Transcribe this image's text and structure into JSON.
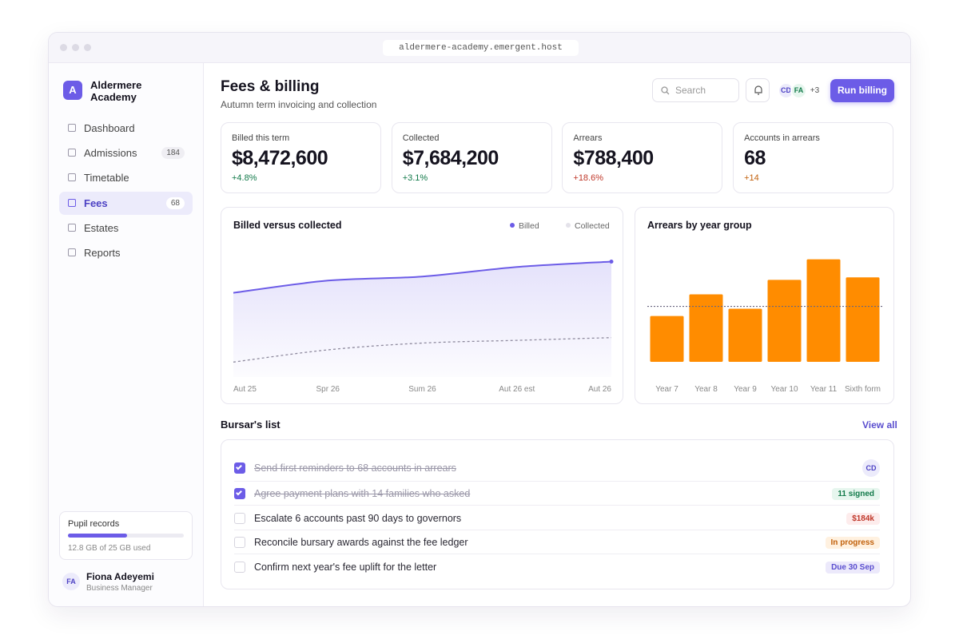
{
  "browser": {
    "url": "aldermere-academy.emergent.host"
  },
  "sidebar": {
    "logo": "A",
    "school": "Aldermere Academy",
    "nav": [
      {
        "label": "Dashboard"
      },
      {
        "label": "Admissions",
        "badge": 184
      },
      {
        "label": "Timetable"
      },
      {
        "label": "Fees",
        "badge": 68,
        "active": true
      },
      {
        "label": "Estates"
      },
      {
        "label": "Reports"
      }
    ],
    "storage": {
      "title": "Pupil records",
      "used": 12.8,
      "total": 25,
      "label": "12.8 GB of 25 GB used"
    },
    "user": {
      "initials": "FA",
      "name": "Fiona Adeyemi",
      "role": "Business Manager"
    }
  },
  "header": {
    "title": "Fees & billing",
    "subtitle": "Autumn term invoicing and collection",
    "search": "Search",
    "avatars": [
      "CD",
      "FA"
    ],
    "more": "+3",
    "button": "Run billing"
  },
  "kpis": [
    {
      "label": "Billed this term",
      "value": "$8,472,600",
      "change": "+4.8%",
      "tone": "green"
    },
    {
      "label": "Collected",
      "value": "$7,684,200",
      "change": "+3.1%",
      "tone": "green"
    },
    {
      "label": "Arrears",
      "value": "$788,400",
      "change": "+18.6%",
      "tone": "red"
    },
    {
      "label": "Accounts in arrears",
      "value": "68",
      "change": "+14",
      "tone": "orange"
    }
  ],
  "charts": [
    {
      "type": "line",
      "title": "Billed versus collected",
      "categories": [
        "Aut 25",
        "Spr 26",
        "Sum 26",
        "Aut 26 est",
        "Aut 26"
      ],
      "series": [
        {
          "name": "Billed",
          "color": "#6c5ce7",
          "values": [
            62,
            71,
            74,
            81,
            85
          ]
        },
        {
          "name": "Collected",
          "color": "#8e8a9e",
          "dashed": true,
          "values": [
            11,
            20,
            25,
            27,
            29
          ]
        }
      ],
      "ylim": [
        0,
        100
      ]
    },
    {
      "type": "bar",
      "title": "Arrears by year group",
      "categories": [
        "Year 7",
        "Year 8",
        "Year 9",
        "Year 10",
        "Year 11",
        "Sixth form"
      ],
      "values": [
        38,
        56,
        44,
        68,
        85,
        70
      ],
      "color": "#ff8c00",
      "reference_line": 46,
      "ylim": [
        0,
        100
      ]
    }
  ],
  "list": {
    "title": "Bursar's list",
    "link": "View all",
    "items": [
      {
        "text": "Send first reminders to 68 accounts in arrears",
        "done": true,
        "tag": "CD",
        "tone": "avatar"
      },
      {
        "text": "Agree payment plans with 14 families who asked",
        "done": true,
        "tag": "11 signed",
        "tone": "green"
      },
      {
        "text": "Escalate 6 accounts past 90 days to governors",
        "done": false,
        "tag": "$184k",
        "tone": "red"
      },
      {
        "text": "Reconcile bursary awards against the fee ledger",
        "done": false,
        "tag": "In progress",
        "tone": "orange"
      },
      {
        "text": "Confirm next year's fee uplift for the letter",
        "done": false,
        "tag": "Due 30 Sep",
        "tone": "purple"
      }
    ]
  }
}
